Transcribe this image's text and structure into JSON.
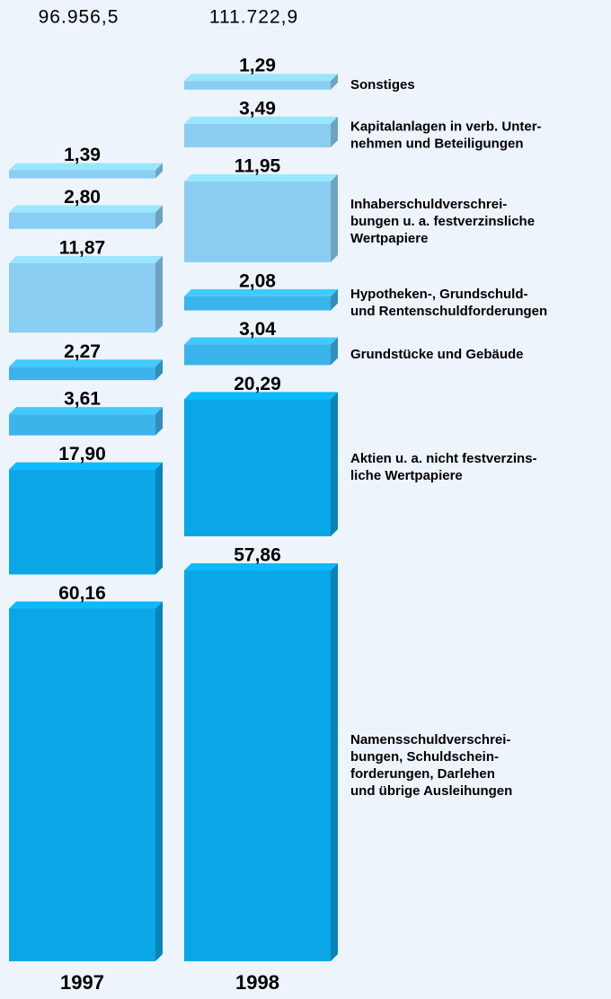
{
  "chart_data": {
    "type": "bar",
    "categories": [
      [
        "Namensschuldverschrei-",
        "bungen, Schuldschein-",
        "forderungen, Darlehen",
        "und übrige Ausleihungen"
      ],
      [
        "Aktien u. a. nicht festverzins-",
        "liche Wertpapiere"
      ],
      [
        "Grundstücke und Gebäude"
      ],
      [
        "Hypotheken-, Grundschuld-",
        "und Rentenschuldforderungen"
      ],
      [
        "Inhaberschuldverschrei-",
        "bungen u. a. festverzinsliche",
        "Wertpapiere"
      ],
      [
        "Kapitalanlagen in verb. Unter-",
        "nehmen und Beteiligungen"
      ],
      [
        "Sonstiges"
      ]
    ],
    "colors": [
      "#0aa6e6",
      "#0aa6e6",
      "#3ab4ea",
      "#3ab4ea",
      "#8acdf2",
      "#8acdf2",
      "#8acdf2"
    ],
    "series": [
      {
        "name": "1997",
        "total": {
          "value": 96956.5,
          "label": "96.956,5"
        },
        "values": [
          60.16,
          17.9,
          3.61,
          2.27,
          11.87,
          2.8,
          1.39
        ],
        "value_labels": [
          "60,16",
          "17,90",
          "3,61",
          "2,27",
          "11,87",
          "2,80",
          "1,39"
        ]
      },
      {
        "name": "1998",
        "total": {
          "value": 111722.9,
          "label": "111.722,9"
        },
        "values": [
          57.86,
          20.29,
          3.04,
          2.08,
          11.95,
          3.49,
          1.29
        ],
        "value_labels": [
          "57,86",
          "20,29",
          "3,04",
          "2,08",
          "11,95",
          "3,49",
          "1,29"
        ]
      }
    ]
  }
}
